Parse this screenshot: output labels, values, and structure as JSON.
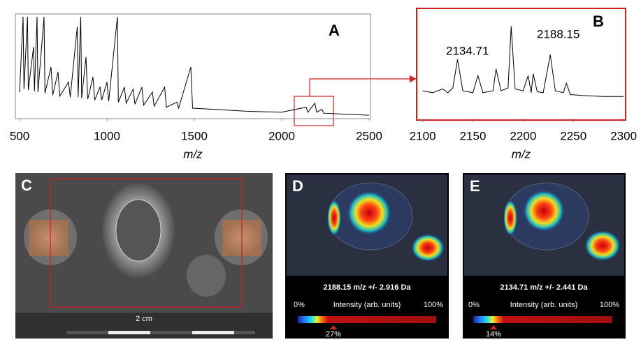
{
  "chart_data": [
    {
      "type": "line",
      "panel_label": "A",
      "color": "#000000",
      "xlabel": "m/z",
      "x": [
        500,
        520,
        525,
        545,
        550,
        580,
        585,
        600,
        605,
        640,
        645,
        680,
        690,
        720,
        730,
        780,
        790,
        830,
        835,
        850,
        855,
        880,
        890,
        920,
        930,
        960,
        970,
        1000,
        1010,
        1060,
        1065,
        1100,
        1110,
        1150,
        1160,
        1200,
        1210,
        1260,
        1270,
        1330,
        1340,
        1400,
        1410,
        1480,
        1490,
        1600,
        1800,
        2000,
        2140,
        2150,
        2190,
        2200,
        2230,
        2240,
        2500
      ],
      "values": [
        25,
        100,
        28,
        100,
        27,
        70,
        26,
        100,
        25,
        100,
        24,
        50,
        22,
        45,
        21,
        35,
        20,
        90,
        20,
        100,
        19,
        60,
        18,
        40,
        17,
        30,
        17,
        35,
        16,
        100,
        15,
        30,
        14,
        28,
        13,
        30,
        12,
        25,
        11,
        30,
        10,
        15,
        9,
        50,
        9,
        8,
        6,
        5,
        10,
        5,
        14,
        5,
        8,
        4,
        2
      ],
      "xlim": [
        476,
        2508
      ],
      "ylim": [
        0,
        100
      ],
      "xticks": [
        500,
        1000,
        1500,
        2000,
        2500
      ]
    },
    {
      "type": "line",
      "panel_label": "B",
      "color": "#000000",
      "xlabel": "m/z",
      "annotations": [
        "2134.71",
        "2188.15"
      ],
      "x": [
        2100,
        2110,
        2120,
        2125,
        2130,
        2134.71,
        2140,
        2150,
        2155,
        2160,
        2170,
        2173,
        2178,
        2185,
        2188.15,
        2192,
        2200,
        2205,
        2208,
        2210,
        2214,
        2220,
        2227,
        2232,
        2240,
        2243,
        2247,
        2260,
        2280,
        2300
      ],
      "values": [
        22,
        20,
        24,
        20,
        25,
        55,
        22,
        20,
        38,
        20,
        22,
        45,
        22,
        25,
        90,
        24,
        22,
        38,
        20,
        40,
        21,
        20,
        60,
        22,
        20,
        30,
        18,
        17,
        16,
        16
      ],
      "xlim": [
        2094,
        2302
      ],
      "ylim": [
        0,
        100
      ],
      "xticks": [
        2100,
        2150,
        2200,
        2250,
        2300
      ]
    }
  ],
  "panels": {
    "c": {
      "label": "C",
      "scale_label": "2 cm"
    },
    "d": {
      "label": "D",
      "caption": "2188.15 m/z +/- 2.916 Da",
      "min_label": "0%",
      "bar_title": "Intensity (arb. units)",
      "max_label": "100%",
      "marker_label": "27%"
    },
    "e": {
      "label": "E",
      "caption": "2134.71 m/z +/- 2.441 Da",
      "min_label": "0%",
      "bar_title": "Intensity (arb. units)",
      "max_label": "100%",
      "marker_label": "14%"
    }
  }
}
